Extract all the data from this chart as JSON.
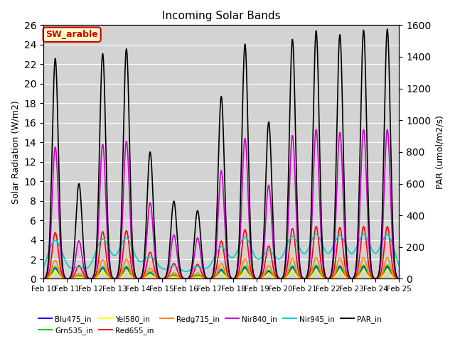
{
  "title": "Incoming Solar Bands",
  "ylabel_left": "Solar Radiation (W/m2)",
  "ylabel_right": "PAR (umol/m2/s)",
  "annotation": "SW_arable",
  "ylim_left": [
    0,
    26
  ],
  "ylim_right": [
    0,
    1600
  ],
  "yticks_left": [
    0,
    2,
    4,
    6,
    8,
    10,
    12,
    14,
    16,
    18,
    20,
    22,
    24,
    26
  ],
  "yticks_right": [
    0,
    200,
    400,
    600,
    800,
    1000,
    1200,
    1400,
    1600
  ],
  "x_start": 10,
  "x_end": 25,
  "x_ticks": [
    10,
    11,
    12,
    13,
    14,
    15,
    16,
    17,
    18,
    19,
    20,
    21,
    22,
    23,
    24,
    25
  ],
  "x_tick_labels": [
    "Feb 10",
    "Feb 11",
    "Feb 12",
    "Feb 13",
    "Feb 14",
    "Feb 15",
    "Feb 16",
    "Feb 17",
    "Feb 18",
    "Feb 19",
    "Feb 20",
    "Feb 21",
    "Feb 22",
    "Feb 23",
    "Feb 24",
    "Feb 25"
  ],
  "background_color": "#d3d3d3",
  "legend_entries": [
    {
      "label": "Blu475_in",
      "color": "#0000ff",
      "lw": 1.5
    },
    {
      "label": "Grn535_in",
      "color": "#00cc00",
      "lw": 1.5
    },
    {
      "label": "Yel580_in",
      "color": "#ffff00",
      "lw": 1.5
    },
    {
      "label": "Red655_in",
      "color": "#ff0000",
      "lw": 1.5
    },
    {
      "label": "Redg715_in",
      "color": "#ff8800",
      "lw": 1.5
    },
    {
      "label": "Nir840_in",
      "color": "#cc00cc",
      "lw": 1.5
    },
    {
      "label": "Nir945_in",
      "color": "#00cccc",
      "lw": 1.5
    },
    {
      "label": "PAR_in",
      "color": "#000000",
      "lw": 1.5
    }
  ],
  "daily_peaks": {
    "10": {
      "sw": 22.5,
      "par": 1390
    },
    "11": {
      "sw": 6.5,
      "par": 600
    },
    "12": {
      "sw": 23.0,
      "par": 1420
    },
    "13": {
      "sw": 23.5,
      "par": 1450
    },
    "14": {
      "sw": 13.0,
      "par": 800
    },
    "15": {
      "sw": 7.5,
      "par": 490
    },
    "16": {
      "sw": 7.0,
      "par": 430
    },
    "17": {
      "sw": 18.5,
      "par": 1150
    },
    "18": {
      "sw": 24.0,
      "par": 1480
    },
    "19": {
      "sw": 16.0,
      "par": 990
    },
    "20": {
      "sw": 24.5,
      "par": 1510
    },
    "21": {
      "sw": 25.5,
      "par": 1565
    },
    "22": {
      "sw": 25.0,
      "par": 1540
    },
    "23": {
      "sw": 25.5,
      "par": 1568
    },
    "24": {
      "sw": 25.5,
      "par": 1575
    }
  },
  "band_fractions": {
    "Blu475": 0.048,
    "Grn535": 0.055,
    "Yel580": 0.032,
    "Red655": 0.21,
    "Redg715": 0.085,
    "Nir840": 0.6,
    "Nir945": 0.175
  },
  "narrow_hw": 0.13,
  "nir945_hw": 0.32
}
